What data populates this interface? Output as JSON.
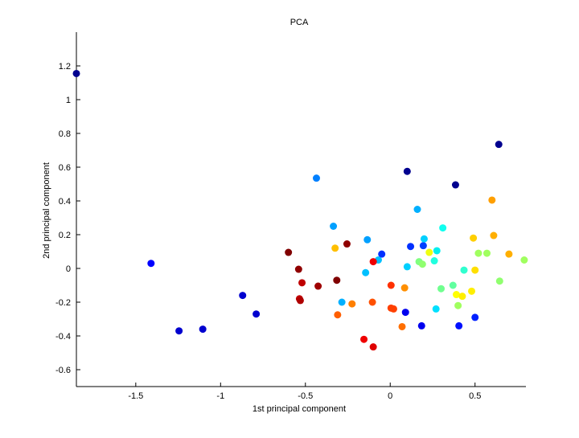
{
  "chart_data": {
    "type": "scatter",
    "title": "PCA",
    "xlabel": "1st principal component",
    "ylabel": "2nd principal component",
    "xlim": [
      -1.85,
      0.8
    ],
    "ylim": [
      -0.7,
      1.4
    ],
    "xticks": [
      -1.5,
      -1,
      -0.5,
      0,
      0.5
    ],
    "xtick_labels": [
      "-1.5",
      "-1",
      "-0.5",
      "0",
      "0.5"
    ],
    "yticks": [
      -0.6,
      -0.4,
      -0.2,
      0,
      0.2,
      0.4,
      0.6,
      0.8,
      1,
      1.2
    ],
    "ytick_labels": [
      "-0.6",
      "-0.4",
      "-0.2",
      "0",
      "0.2",
      "0.4",
      "0.6",
      "0.8",
      "1",
      "1.2"
    ],
    "grid": false,
    "colormap": "jet",
    "points": [
      {
        "x": -1.85,
        "y": 1.155,
        "color": "#00008f"
      },
      {
        "x": 0.64,
        "y": 0.735,
        "color": "#00008f"
      },
      {
        "x": 0.1,
        "y": 0.575,
        "color": "#00008f"
      },
      {
        "x": 0.385,
        "y": 0.495,
        "color": "#00008f"
      },
      {
        "x": -1.41,
        "y": 0.03,
        "color": "#0000ff"
      },
      {
        "x": -0.87,
        "y": -0.16,
        "color": "#0000cf"
      },
      {
        "x": -0.79,
        "y": -0.27,
        "color": "#0000cf"
      },
      {
        "x": -1.245,
        "y": -0.37,
        "color": "#0000cf"
      },
      {
        "x": -1.105,
        "y": -0.36,
        "color": "#0000cf"
      },
      {
        "x": 0.09,
        "y": -0.26,
        "color": "#0000ef"
      },
      {
        "x": 0.185,
        "y": -0.34,
        "color": "#0000ef"
      },
      {
        "x": 0.405,
        "y": -0.34,
        "color": "#0010ff"
      },
      {
        "x": 0.5,
        "y": -0.29,
        "color": "#0020ff"
      },
      {
        "x": -0.05,
        "y": 0.085,
        "color": "#0030ff"
      },
      {
        "x": 0.12,
        "y": 0.13,
        "color": "#0030ff"
      },
      {
        "x": 0.195,
        "y": 0.135,
        "color": "#0040ff"
      },
      {
        "x": -0.435,
        "y": 0.535,
        "color": "#0080ff"
      },
      {
        "x": -0.335,
        "y": 0.25,
        "color": "#00a0ff"
      },
      {
        "x": -0.135,
        "y": 0.17,
        "color": "#00a0ff"
      },
      {
        "x": 0.16,
        "y": 0.35,
        "color": "#00b0ff"
      },
      {
        "x": -0.285,
        "y": -0.2,
        "color": "#00b0ff"
      },
      {
        "x": -0.145,
        "y": -0.025,
        "color": "#00c0ff"
      },
      {
        "x": -0.07,
        "y": 0.05,
        "color": "#00c0ff"
      },
      {
        "x": 0.1,
        "y": 0.01,
        "color": "#00d0ff"
      },
      {
        "x": 0.2,
        "y": 0.175,
        "color": "#00d0ff"
      },
      {
        "x": 0.27,
        "y": -0.24,
        "color": "#00e0ff"
      },
      {
        "x": 0.275,
        "y": 0.105,
        "color": "#00efef"
      },
      {
        "x": 0.31,
        "y": 0.24,
        "color": "#10ffef"
      },
      {
        "x": 0.26,
        "y": 0.045,
        "color": "#20ffdf"
      },
      {
        "x": 0.435,
        "y": -0.01,
        "color": "#30ffcf"
      },
      {
        "x": 0.37,
        "y": -0.1,
        "color": "#60ff9f"
      },
      {
        "x": 0.3,
        "y": -0.12,
        "color": "#70ff8f"
      },
      {
        "x": 0.17,
        "y": 0.04,
        "color": "#80ff7f"
      },
      {
        "x": 0.19,
        "y": 0.025,
        "color": "#90ff6f"
      },
      {
        "x": 0.4,
        "y": -0.22,
        "color": "#a0ff5f"
      },
      {
        "x": 0.52,
        "y": 0.09,
        "color": "#a0ff5f"
      },
      {
        "x": 0.57,
        "y": 0.09,
        "color": "#a0ff5f"
      },
      {
        "x": 0.645,
        "y": -0.075,
        "color": "#90ff6f"
      },
      {
        "x": 0.79,
        "y": 0.05,
        "color": "#a0ff5f"
      },
      {
        "x": 0.23,
        "y": 0.095,
        "color": "#efff10"
      },
      {
        "x": 0.39,
        "y": -0.155,
        "color": "#ffff00"
      },
      {
        "x": 0.425,
        "y": -0.165,
        "color": "#ffef00"
      },
      {
        "x": 0.48,
        "y": -0.135,
        "color": "#ffef00"
      },
      {
        "x": 0.5,
        "y": -0.01,
        "color": "#ffdf00"
      },
      {
        "x": 0.49,
        "y": 0.18,
        "color": "#ffcf00"
      },
      {
        "x": -0.325,
        "y": 0.12,
        "color": "#ffbf00"
      },
      {
        "x": 0.61,
        "y": 0.195,
        "color": "#ffaf00"
      },
      {
        "x": 0.7,
        "y": 0.085,
        "color": "#ffaf00"
      },
      {
        "x": 0.6,
        "y": 0.405,
        "color": "#ff9f00"
      },
      {
        "x": 0.085,
        "y": -0.115,
        "color": "#ff8f00"
      },
      {
        "x": -0.225,
        "y": -0.21,
        "color": "#ff7f00"
      },
      {
        "x": 0.07,
        "y": -0.345,
        "color": "#ff6f00"
      },
      {
        "x": -0.31,
        "y": -0.275,
        "color": "#ff5f00"
      },
      {
        "x": -0.105,
        "y": -0.2,
        "color": "#ff5000"
      },
      {
        "x": 0.005,
        "y": -0.235,
        "color": "#ff4000"
      },
      {
        "x": 0.02,
        "y": -0.24,
        "color": "#ff4000"
      },
      {
        "x": 0.005,
        "y": -0.1,
        "color": "#ff3000"
      },
      {
        "x": -0.1,
        "y": 0.04,
        "color": "#ef0000"
      },
      {
        "x": -0.155,
        "y": -0.42,
        "color": "#ef0000"
      },
      {
        "x": -0.1,
        "y": -0.465,
        "color": "#df0000"
      },
      {
        "x": -0.535,
        "y": -0.18,
        "color": "#bf0000"
      },
      {
        "x": -0.53,
        "y": -0.19,
        "color": "#af0000"
      },
      {
        "x": -0.52,
        "y": -0.085,
        "color": "#bf0000"
      },
      {
        "x": -0.425,
        "y": -0.105,
        "color": "#9f0000"
      },
      {
        "x": -0.255,
        "y": 0.145,
        "color": "#8f0000"
      },
      {
        "x": -0.315,
        "y": -0.07,
        "color": "#800000"
      },
      {
        "x": -0.54,
        "y": -0.005,
        "color": "#900000"
      },
      {
        "x": -0.6,
        "y": 0.095,
        "color": "#800000"
      }
    ]
  }
}
